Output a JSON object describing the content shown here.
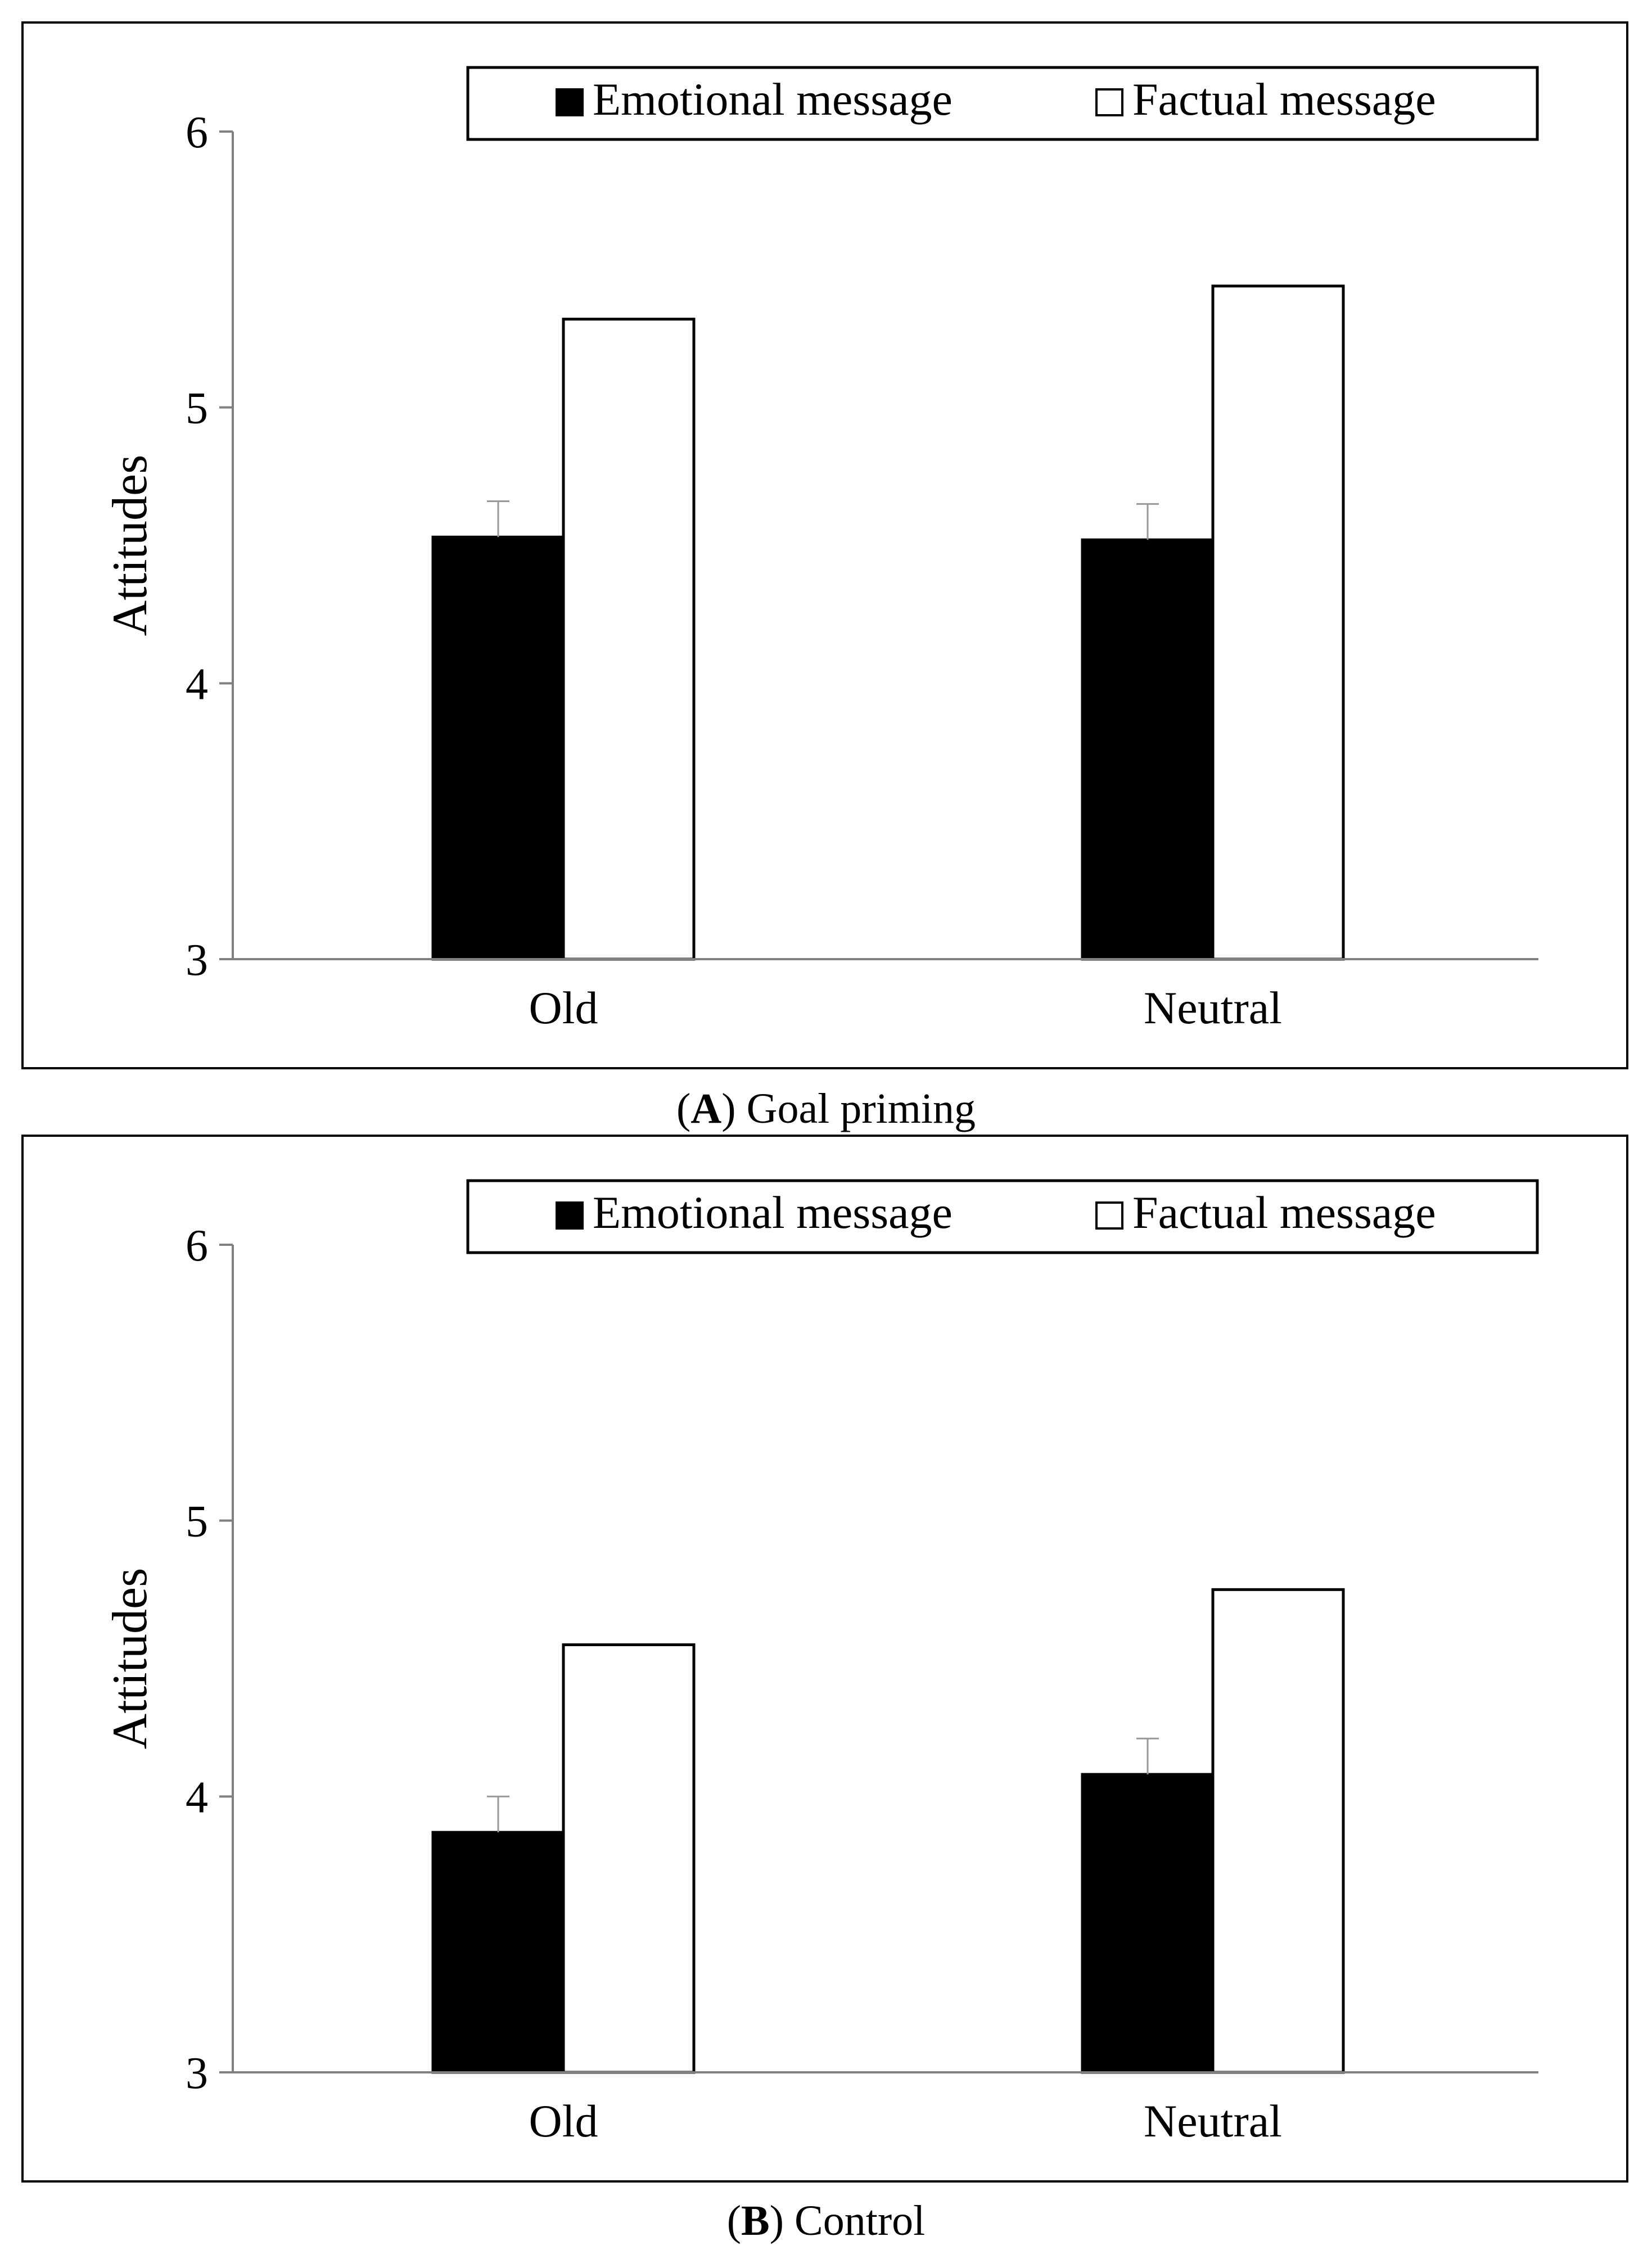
{
  "chart_data": [
    {
      "type": "bar",
      "panel_letter": "A",
      "panel_title": "Goal priming",
      "categories": [
        "Old",
        "Neutral"
      ],
      "series": [
        {
          "name": "Emotional message",
          "fill": "#000000",
          "values": [
            4.53,
            4.52
          ],
          "error": [
            0.13,
            0.13
          ]
        },
        {
          "name": "Factual message",
          "fill": "#ffffff",
          "values": [
            5.32,
            5.44
          ]
        }
      ],
      "ylabel": "Attitudes",
      "xlabel": "",
      "ylim": [
        3,
        6
      ],
      "yticks": [
        "3",
        "4",
        "5",
        "6"
      ],
      "grid": false,
      "legend_position": "top"
    },
    {
      "type": "bar",
      "panel_letter": "B",
      "panel_title": "Control",
      "categories": [
        "Old",
        "Neutral"
      ],
      "series": [
        {
          "name": "Emotional message",
          "fill": "#000000",
          "values": [
            3.87,
            4.08
          ],
          "error": [
            0.13,
            0.13
          ]
        },
        {
          "name": "Factual message",
          "fill": "#ffffff",
          "values": [
            4.55,
            4.75
          ]
        }
      ],
      "ylabel": "Attitudes",
      "xlabel": "",
      "ylim": [
        3,
        6
      ],
      "yticks": [
        "3",
        "4",
        "5",
        "6"
      ],
      "grid": false,
      "legend_position": "top"
    }
  ],
  "colors": {
    "axis": "#808080",
    "error_bar": "#999999",
    "border": "#000000"
  }
}
